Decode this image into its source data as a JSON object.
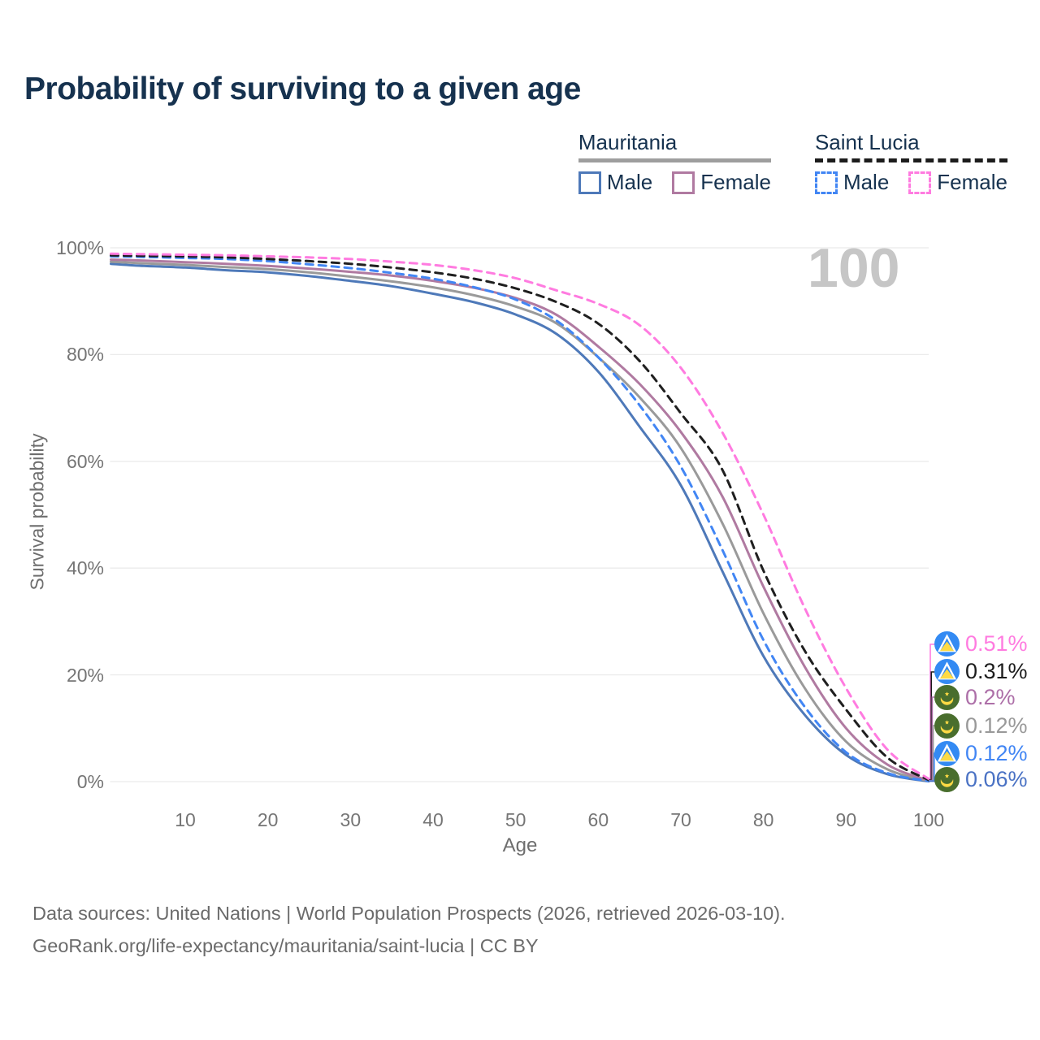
{
  "title": "Probability of surviving to a given age",
  "watermark": "100",
  "legend": {
    "groups": [
      {
        "label": "Mauritania",
        "line_style": "solid",
        "underline_color": "#9e9e9e",
        "items": [
          {
            "label": "Male",
            "color": "#4e79b9",
            "dashed": false
          },
          {
            "label": "Female",
            "color": "#b07aa1",
            "dashed": false
          }
        ]
      },
      {
        "label": "Saint Lucia",
        "line_style": "dashed",
        "underline_color": "#1c1c1c",
        "items": [
          {
            "label": "Male",
            "color": "#4286f4",
            "dashed": true
          },
          {
            "label": "Female",
            "color": "#ff7be0",
            "dashed": true
          }
        ]
      }
    ]
  },
  "chart_data": {
    "type": "line",
    "title": "Probability of surviving to a given age",
    "xlabel": "Age",
    "ylabel": "Survival probability",
    "xlim": [
      1,
      100
    ],
    "ylim": [
      0,
      100
    ],
    "grid": "horizontal-only",
    "legend_position": "top-right",
    "x_ticks": [
      {
        "label": "10",
        "value": 10
      },
      {
        "label": "20",
        "value": 20
      },
      {
        "label": "30",
        "value": 30
      },
      {
        "label": "40",
        "value": 40
      },
      {
        "label": "50",
        "value": 50
      },
      {
        "label": "60",
        "value": 60
      },
      {
        "label": "70",
        "value": 70
      },
      {
        "label": "80",
        "value": 80
      },
      {
        "label": "90",
        "value": 90
      },
      {
        "label": "100",
        "value": 100
      }
    ],
    "y_ticks": [
      {
        "label": "0%",
        "value": 0
      },
      {
        "label": "20%",
        "value": 20
      },
      {
        "label": "40%",
        "value": 40
      },
      {
        "label": "60%",
        "value": 60
      },
      {
        "label": "80%",
        "value": 80
      },
      {
        "label": "100%",
        "value": 100
      }
    ],
    "x": [
      1,
      5,
      10,
      15,
      20,
      25,
      30,
      35,
      40,
      45,
      50,
      55,
      60,
      65,
      70,
      75,
      80,
      85,
      90,
      95,
      100
    ],
    "series": [
      {
        "id": "mauritania-male",
        "name": "Mauritania Male",
        "country": "Mauritania",
        "sex": "Male",
        "style": "solid",
        "color": "#4e79b9",
        "values": [
          97.0,
          96.6,
          96.3,
          95.8,
          95.4,
          94.7,
          93.8,
          92.8,
          91.4,
          89.8,
          87.5,
          83.8,
          76.8,
          66.5,
          55.5,
          39.5,
          23.5,
          12.5,
          5.0,
          1.4,
          0.06
        ]
      },
      {
        "id": "mauritania-all",
        "name": "Mauritania",
        "country": "Mauritania",
        "sex": "Both",
        "style": "solid",
        "color": "#9a9a9a",
        "values": [
          97.4,
          97.1,
          96.8,
          96.4,
          96.0,
          95.4,
          94.6,
          93.7,
          92.6,
          91.1,
          89.0,
          85.8,
          79.5,
          72.0,
          62.5,
          48.5,
          31.5,
          17.5,
          7.5,
          2.3,
          0.12
        ]
      },
      {
        "id": "mauritania-female",
        "name": "Mauritania Female",
        "country": "Mauritania",
        "sex": "Female",
        "style": "solid",
        "color": "#b07aa1",
        "values": [
          97.8,
          97.6,
          97.3,
          97.0,
          96.6,
          96.1,
          95.5,
          94.8,
          93.8,
          92.5,
          90.6,
          87.4,
          81.5,
          74.5,
          65.5,
          53.5,
          36.5,
          21.5,
          10.0,
          3.2,
          0.2
        ]
      },
      {
        "id": "saint-lucia-male",
        "name": "Saint Lucia Male",
        "country": "Saint Lucia",
        "sex": "Male",
        "style": "dashed",
        "color": "#4286f4",
        "values": [
          98.4,
          98.3,
          98.1,
          97.9,
          97.5,
          96.9,
          96.2,
          95.3,
          94.2,
          92.6,
          90.3,
          86.3,
          79.5,
          70.5,
          59.0,
          43.5,
          26.5,
          14.0,
          5.5,
          1.6,
          0.12
        ]
      },
      {
        "id": "saint-lucia-all",
        "name": "Saint Lucia",
        "country": "Saint Lucia",
        "sex": "Both",
        "style": "dashed",
        "color": "#1f1f1f",
        "values": [
          98.6,
          98.5,
          98.4,
          98.2,
          97.9,
          97.5,
          97.0,
          96.3,
          95.4,
          94.2,
          92.4,
          89.8,
          85.8,
          78.8,
          69.0,
          58.5,
          39.5,
          24.5,
          13.5,
          4.5,
          0.31
        ]
      },
      {
        "id": "saint-lucia-female",
        "name": "Saint Lucia Female",
        "country": "Saint Lucia",
        "sex": "Female",
        "style": "dashed",
        "color": "#ff7be0",
        "values": [
          98.9,
          98.8,
          98.7,
          98.6,
          98.4,
          98.2,
          97.9,
          97.4,
          96.8,
          95.8,
          94.3,
          92.0,
          89.5,
          85.5,
          77.5,
          65.5,
          50.0,
          32.5,
          17.5,
          6.0,
          0.51
        ]
      }
    ],
    "end_labels": [
      {
        "value": "0.51%",
        "color": "#ff7be0",
        "flag": "saint-lucia",
        "series": "saint-lucia-female"
      },
      {
        "value": "0.31%",
        "color": "#1c1c1c",
        "flag": "saint-lucia",
        "series": "saint-lucia-all"
      },
      {
        "value": "0.2%",
        "color": "#ad6fa8",
        "flag": "mauritania",
        "series": "mauritania-female"
      },
      {
        "value": "0.12%",
        "color": "#999999",
        "flag": "mauritania",
        "series": "mauritania-all"
      },
      {
        "value": "0.12%",
        "color": "#4286f4",
        "flag": "saint-lucia",
        "series": "saint-lucia-male"
      },
      {
        "value": "0.06%",
        "color": "#4a72c4",
        "flag": "mauritania",
        "series": "mauritania-male"
      }
    ]
  },
  "footer": {
    "line1": "Data sources: United Nations | World Population Prospects (2026, retrieved 2026-03-10).",
    "line2": "GeoRank.org/life-expectancy/mauritania/saint-lucia | CC BY"
  }
}
